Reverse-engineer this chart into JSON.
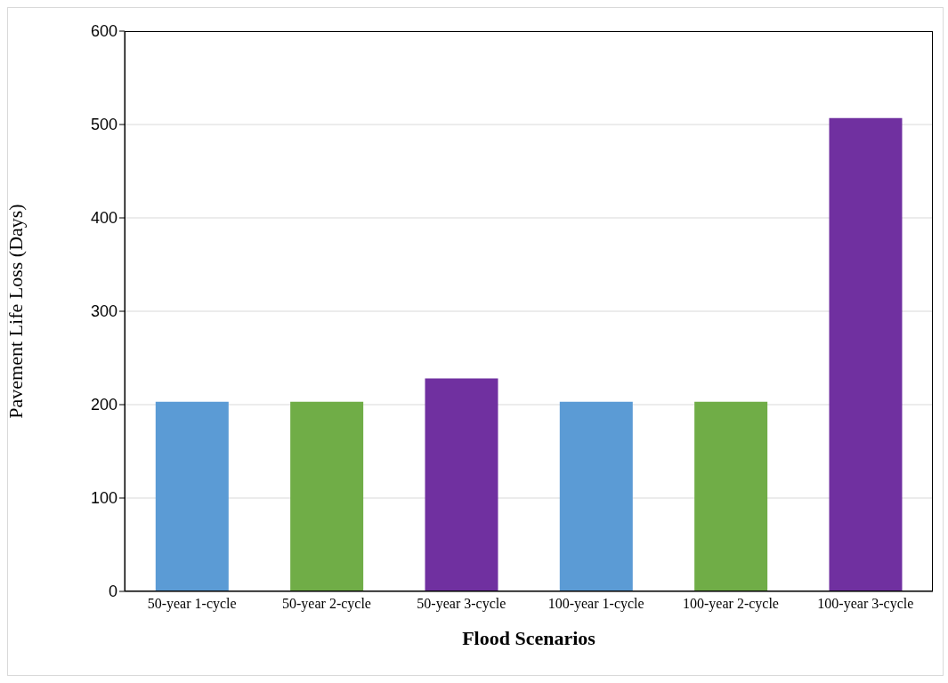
{
  "chart_data": {
    "type": "bar",
    "xlabel": "Flood Scenarios",
    "ylabel": "Pavement Life Loss (Days)",
    "categories": [
      "50-year 1-cycle",
      "50-year 2-cycle",
      "50-year 3-cycle",
      "100-year 1-cycle",
      "100-year 2-cycle",
      "100-year 3-cycle"
    ],
    "values": [
      203,
      203,
      228,
      203,
      203,
      507
    ],
    "colors": [
      "#5b9bd5",
      "#70ad47",
      "#7030a0",
      "#5b9bd5",
      "#70ad47",
      "#7030a0"
    ],
    "ylim": [
      0,
      600
    ],
    "yticks": [
      0,
      100,
      200,
      300,
      400,
      500,
      600
    ],
    "grid": "y",
    "legend": false
  }
}
